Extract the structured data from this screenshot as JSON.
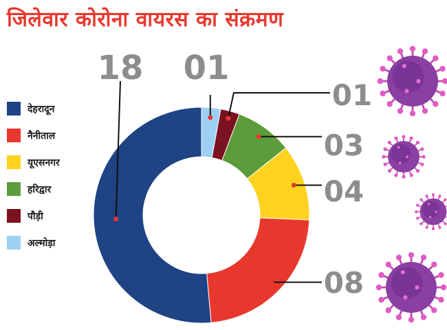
{
  "chart_data": {
    "type": "pie",
    "title": "जिलेवार कोरोना वायरस का संक्रमण",
    "categories": [
      "देहरादून",
      "नैनीताल",
      "यूएसनगर",
      "हरिद्वार",
      "पौड़ी",
      "अल्मोड़ा"
    ],
    "values": [
      18,
      8,
      4,
      3,
      1,
      1
    ],
    "value_labels": [
      "18",
      "08",
      "04",
      "03",
      "01",
      "01"
    ],
    "colors": [
      "#1f4384",
      "#e8382e",
      "#ffd21f",
      "#5d9c3a",
      "#7b1220",
      "#9dd0f3"
    ],
    "donut": true,
    "legend_position": "left"
  },
  "decorations": {
    "icon": "coronavirus-icon",
    "count": 4,
    "color": "#8b3fa3"
  }
}
